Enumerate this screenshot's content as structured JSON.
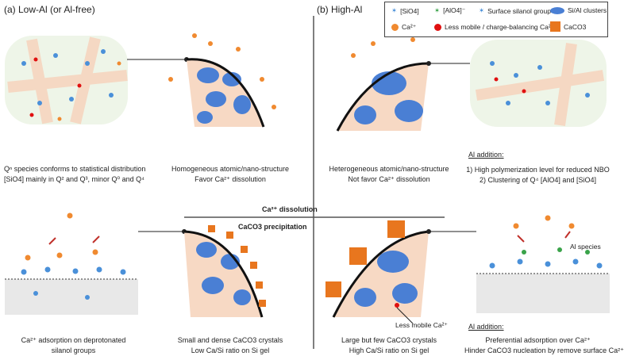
{
  "panels": {
    "a_title": "(a) Low-Al (or Al-free)",
    "b_title": "(b) High-Al"
  },
  "legend": {
    "sio4": "[SiO4]",
    "alo4": "[AlO4]⁻",
    "silanol": "Surface silanol group",
    "clusters": "Si/Al clusters",
    "ca": "Ca²⁺",
    "less_mobile": "Less mobile / charge-balancing Ca²⁺",
    "caco3": "CaCO3"
  },
  "axes": {
    "dissolution": "Ca²⁺ dissolution",
    "precipitation": "CaCO3 precipitation"
  },
  "top_left": {
    "line1": "Qⁿ species conforms to statistical distribution",
    "line2": "[SiO4] mainly in Q² and Q³, minor Q⁰ and Q⁴"
  },
  "top_mid_left": {
    "line1": "Homogeneous atomic/nano-structure",
    "line2": "Favor Ca²⁺ dissolution"
  },
  "top_mid_right": {
    "line1": "Heterogeneous atomic/nano-structure",
    "line2": "Not favor Ca²⁺ dissolution"
  },
  "top_right": {
    "heading": "Al addition:",
    "line1": "1) High polymerization level for reduced NBO",
    "line2": "2) Clustering of Q⁴ [AlO4] and [SiO4]"
  },
  "bottom_left": {
    "line1": "Ca²⁺ adsorption on deprotonated",
    "line2": "silanol groups"
  },
  "bottom_mid_left": {
    "line1": "Small and dense CaCO3 crystals",
    "line2": "Low Ca/Si ratio on Si gel"
  },
  "bottom_mid_right": {
    "line1": "Large but few CaCO3 crystals",
    "line2": "High Ca/Si ratio on Si gel",
    "annotation": "Less mobile Ca²⁺"
  },
  "bottom_right": {
    "heading": "Al addition:",
    "line1": "Preferential adsorption over Ca²⁺",
    "line2": "Hinder CaCO3 nucleation by remove surface Ca²⁺",
    "annotation": "Al species"
  },
  "colors": {
    "cluster_blue": "#4a7fd4",
    "ca_orange": "#f08a30",
    "less_mobile_red": "#e01010",
    "gel_peach": "#f7d9c4",
    "caco3": "#e8761e"
  }
}
